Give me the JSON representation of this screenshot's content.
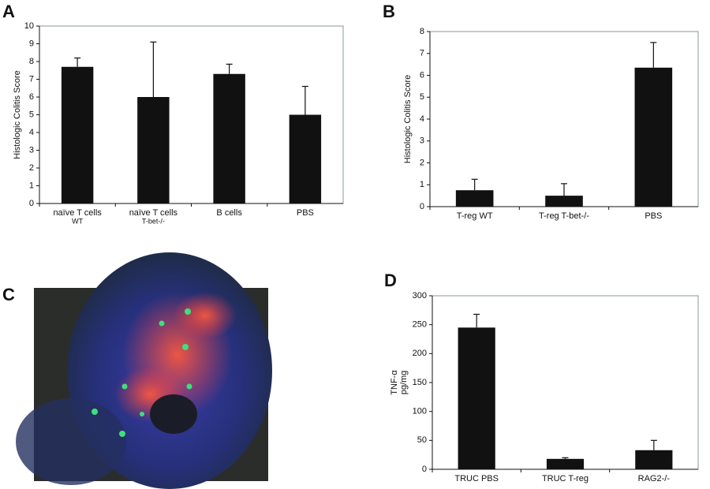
{
  "chart_data": [
    {
      "type": "bar",
      "label": "A",
      "ylabel": "Histologic Colitis Score",
      "categories": [
        "naïve T cells",
        "naïve T cells",
        "B cells",
        "PBS"
      ],
      "category_sublabels": [
        "WT",
        "T-bet-/-",
        null,
        null
      ],
      "values": [
        7.7,
        6.0,
        7.3,
        5.0
      ],
      "errors": [
        0.5,
        3.1,
        0.55,
        1.6
      ],
      "color": "#111111",
      "ylim": [
        0,
        10
      ],
      "yticks": [
        0,
        1,
        2,
        3,
        4,
        5,
        6,
        7,
        8,
        9,
        10
      ]
    },
    {
      "type": "bar",
      "label": "B",
      "ylabel": "Histologic Colitis Score",
      "categories": [
        "T-reg WT",
        "T-reg T-bet-/-",
        "PBS"
      ],
      "values": [
        0.75,
        0.5,
        6.35
      ],
      "errors": [
        0.5,
        0.55,
        1.15
      ],
      "color": "#111111",
      "ylim": [
        0,
        8
      ],
      "yticks": [
        0,
        1,
        2,
        3,
        4,
        5,
        6,
        7,
        8
      ]
    },
    {
      "type": "bar",
      "label": "D",
      "ylabel": "TNF-α",
      "ylabel_unit": "pg/mg",
      "categories": [
        "TRUC PBS",
        "TRUC T-reg",
        "RAG2-/-"
      ],
      "values": [
        245,
        18,
        33
      ],
      "errors": [
        23,
        2,
        17
      ],
      "color": "#111111",
      "ylim": [
        0,
        300
      ],
      "yticks": [
        0,
        50,
        100,
        150,
        200,
        250,
        300
      ]
    }
  ],
  "image_panel": {
    "label": "C"
  }
}
